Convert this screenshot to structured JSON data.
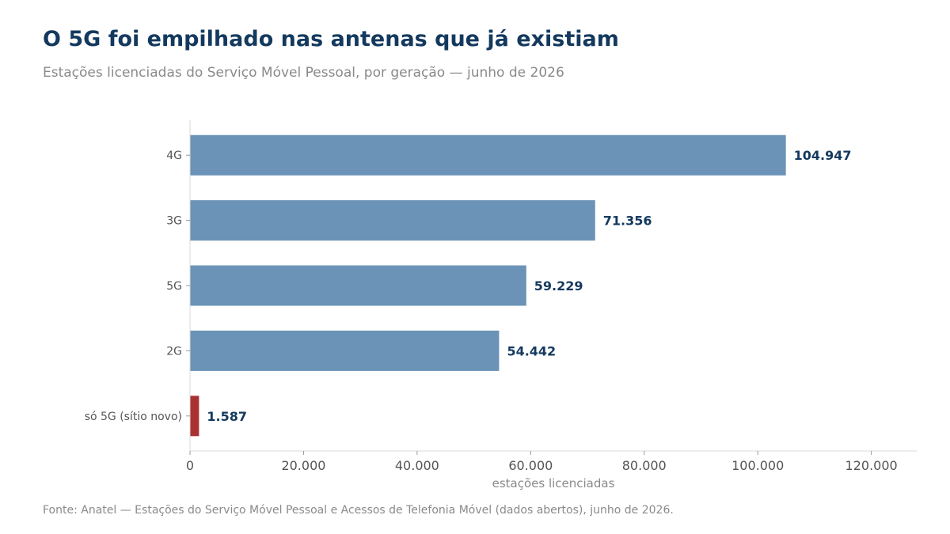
{
  "header": {
    "title": "O 5G foi empilhado nas antenas que já existiam",
    "subtitle": "Estações licenciadas do Serviço Móvel Pessoal, por geração — junho de 2026"
  },
  "footer": {
    "source": "Fonte: Anatel — Estações do Serviço Móvel Pessoal e Acessos de Telefonia Móvel (dados abertos), junho de 2026."
  },
  "chart_data": {
    "type": "bar",
    "orientation": "horizontal",
    "categories": [
      "4G",
      "3G",
      "5G",
      "2G",
      "só 5G (sítio novo)"
    ],
    "values": [
      104947,
      71356,
      59229,
      54442,
      1587
    ],
    "value_labels": [
      "104.947",
      "71.356",
      "59.229",
      "54.442",
      "1.587"
    ],
    "bar_colors": [
      "#6b93b7",
      "#6b93b7",
      "#6b93b7",
      "#6b93b7",
      "#a83232"
    ],
    "xlabel": "estações licenciadas",
    "xlim": [
      0,
      128000
    ],
    "xticks": [
      0,
      20000,
      40000,
      60000,
      80000,
      100000,
      120000
    ],
    "xtick_labels": [
      "0",
      "20.000",
      "40.000",
      "60.000",
      "80.000",
      "100.000",
      "120.000"
    ],
    "grid": false
  }
}
